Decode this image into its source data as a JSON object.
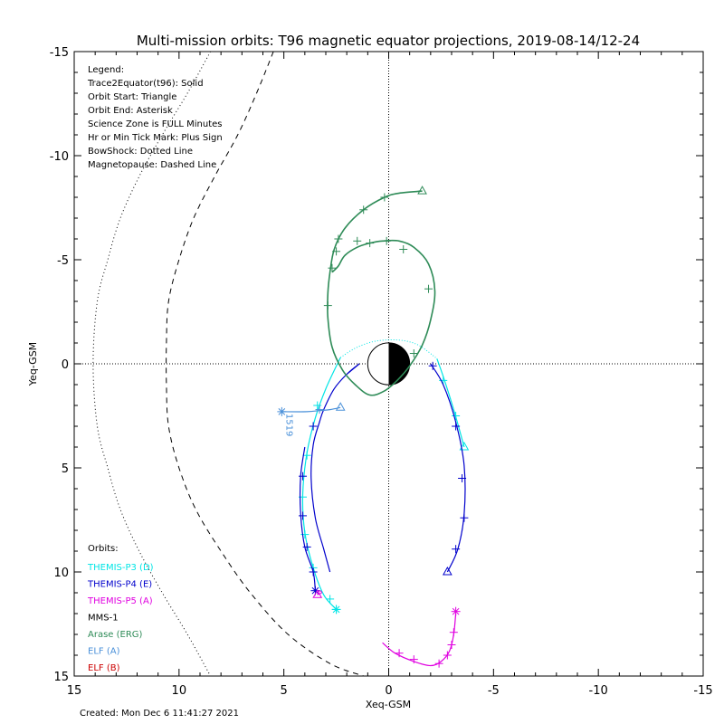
{
  "chart_data": {
    "type": "line",
    "title": "Multi-mission orbits: T96 magnetic equator projections, 2019-08-14/12-24",
    "xlabel": "Xeq-GSM",
    "ylabel": "Yeq-GSM",
    "xlim": [
      15,
      -15
    ],
    "ylim": [
      15,
      -15
    ],
    "xticks": [
      15,
      10,
      5,
      0,
      -5,
      -10,
      -15
    ],
    "yticks": [
      -15,
      -10,
      -5,
      0,
      5,
      10,
      15
    ],
    "xtick_labels": [
      "15",
      "10",
      "5",
      "0",
      "-5",
      "-10",
      "-15"
    ],
    "ytick_labels": [
      "-15",
      "-10",
      "-5",
      "0",
      "5",
      "10",
      "15"
    ],
    "grid": false,
    "zero_lines": "dotted",
    "created": "Created: Mon Dec  6 11:41:27 2021",
    "legend": {
      "placement": "top-left",
      "lines": [
        "Legend:",
        "Trace2Equator(t96): Solid",
        "Orbit Start: Triangle",
        "Orbit End: Asterisk",
        "Science Zone is FULL Minutes",
        "Hr or Min Tick Mark: Plus Sign",
        "BowShock: Dotted Line",
        "Magnetopause: Dashed Line"
      ]
    },
    "orbits_legend": {
      "placement": "bottom-left",
      "heading": "Orbits:",
      "entries": [
        {
          "label": "THEMIS-P3 (D)",
          "color": "#00e5e5"
        },
        {
          "label": "THEMIS-P4 (E)",
          "color": "#0000cc"
        },
        {
          "label": "THEMIS-P5 (A)",
          "color": "#e000e0"
        },
        {
          "label": "MMS-1",
          "color": "#000000"
        },
        {
          "label": "Arase (ERG)",
          "color": "#2e8b57"
        },
        {
          "label": "ELF (A)",
          "color": "#4a90d9"
        },
        {
          "label": "ELF (B)",
          "color": "#cc0000"
        }
      ]
    },
    "annotation": {
      "text": "1519",
      "x": 5.1,
      "y": 2.3,
      "color": "#4a90d9"
    },
    "earth": {
      "radius": 1,
      "night_color": "#000000",
      "day_color": "#ffffff"
    },
    "bow_shock": [
      [
        8.5,
        -15
      ],
      [
        9.6,
        -13
      ],
      [
        10.8,
        -11
      ],
      [
        11.9,
        -9
      ],
      [
        12.8,
        -7
      ],
      [
        13.4,
        -5
      ],
      [
        13.9,
        -3
      ],
      [
        14.1,
        0
      ],
      [
        13.9,
        3
      ],
      [
        13.4,
        5
      ],
      [
        12.8,
        7
      ],
      [
        11.9,
        9
      ],
      [
        10.8,
        11
      ],
      [
        9.6,
        13
      ],
      [
        8.5,
        15
      ]
    ],
    "magnetopause": [
      [
        5.5,
        -15
      ],
      [
        6.3,
        -13
      ],
      [
        7.2,
        -11
      ],
      [
        8.3,
        -9
      ],
      [
        9.3,
        -7
      ],
      [
        10.0,
        -5
      ],
      [
        10.5,
        -3
      ],
      [
        10.6,
        -1
      ],
      [
        10.6,
        1
      ],
      [
        10.5,
        3
      ],
      [
        10.0,
        5
      ],
      [
        9.2,
        7
      ],
      [
        8.0,
        9
      ],
      [
        6.6,
        11
      ],
      [
        4.8,
        13
      ],
      [
        2.8,
        14.4
      ],
      [
        1.2,
        15
      ]
    ],
    "series": [
      {
        "name": "THEMIS-P3 (D)",
        "color": "#00e5e5",
        "dotted_segment": [
          [
            2.3,
            -0.3
          ],
          [
            1.6,
            -0.75
          ],
          [
            0.8,
            -1.05
          ],
          [
            0.0,
            -1.15
          ],
          [
            -0.8,
            -1.1
          ],
          [
            -1.5,
            -0.85
          ],
          [
            -2.3,
            -0.25
          ]
        ],
        "points": [
          [
            -2.3,
            -0.25
          ],
          [
            -2.6,
            0.8
          ],
          [
            -3.2,
            2.3
          ],
          [
            -3.6,
            4.0
          ],
          [
            -3.4,
            4.0
          ],
          [
            -3.6,
            4.0
          ]
        ],
        "solid": [
          [
            -2.3,
            -0.25
          ],
          [
            -2.6,
            0.6
          ],
          [
            -3.1,
            2.2
          ],
          [
            -3.6,
            4.0
          ]
        ],
        "solid2": [
          [
            2.3,
            -0.3
          ],
          [
            3.0,
            1.2
          ],
          [
            3.5,
            2.6
          ],
          [
            3.9,
            4.3
          ],
          [
            4.1,
            6.3
          ],
          [
            4.0,
            8.1
          ],
          [
            3.6,
            9.8
          ],
          [
            3.1,
            11.1
          ],
          [
            2.5,
            11.8
          ]
        ],
        "ticks": [
          [
            -2.6,
            0.8
          ],
          [
            -3.2,
            2.5
          ],
          [
            3.4,
            2.0
          ],
          [
            3.9,
            4.4
          ],
          [
            4.1,
            6.4
          ],
          [
            4.0,
            8.2
          ],
          [
            3.6,
            9.8
          ],
          [
            2.8,
            11.3
          ],
          [
            2.5,
            11.8
          ]
        ],
        "start": [
          -3.6,
          4.0
        ],
        "end": [
          2.5,
          11.8
        ]
      },
      {
        "name": "THEMIS-P4 (E)",
        "color": "#0000cc",
        "solid": [
          [
            2.8,
            10.0
          ],
          [
            3.1,
            8.9
          ],
          [
            3.5,
            7.4
          ],
          [
            3.7,
            5.5
          ],
          [
            3.6,
            3.9
          ],
          [
            3.3,
            2.8
          ],
          [
            3.1,
            2.2
          ],
          [
            2.6,
            1.2
          ],
          [
            2.0,
            0.5
          ],
          [
            1.4,
            0.0
          ],
          [
            2.0,
            0.5
          ]
        ],
        "solid_main": [
          [
            -2.0,
            0.0
          ],
          [
            -2.6,
            1.0
          ],
          [
            -3.2,
            2.8
          ],
          [
            -3.6,
            4.9
          ],
          [
            -3.6,
            7.2
          ],
          [
            -3.3,
            8.9
          ],
          [
            -2.8,
            10.0
          ]
        ],
        "solid_left": [
          [
            4.0,
            4.0
          ],
          [
            4.2,
            5.4
          ],
          [
            4.2,
            7.2
          ],
          [
            4.0,
            8.8
          ],
          [
            3.6,
            10.0
          ],
          [
            3.5,
            10.9
          ]
        ],
        "ticks": [
          [
            -2.1,
            0.1
          ],
          [
            -3.2,
            3.0
          ],
          [
            -3.5,
            5.5
          ],
          [
            -3.6,
            7.4
          ],
          [
            -3.2,
            8.9
          ],
          [
            3.6,
            3.0
          ],
          [
            4.1,
            5.4
          ],
          [
            4.1,
            7.3
          ],
          [
            3.9,
            8.8
          ],
          [
            3.6,
            10.0
          ]
        ],
        "start": [
          -2.8,
          10.0
        ],
        "end": [
          3.5,
          10.9
        ]
      },
      {
        "name": "THEMIS-P5 (A)",
        "color": "#e000e0",
        "solid": [
          [
            0.3,
            13.4
          ],
          [
            -0.3,
            13.9
          ],
          [
            -1.2,
            14.3
          ],
          [
            -2.0,
            14.5
          ],
          [
            -2.5,
            14.3
          ],
          [
            -2.9,
            13.8
          ],
          [
            -3.1,
            13.0
          ],
          [
            -3.2,
            12.0
          ]
        ],
        "small": [
          [
            3.4,
            11.1
          ],
          [
            3.3,
            10.9
          ],
          [
            3.2,
            11.0
          ],
          [
            3.4,
            11.1
          ]
        ],
        "ticks": [
          [
            -0.5,
            13.9
          ],
          [
            -1.2,
            14.2
          ],
          [
            -2.4,
            14.4
          ],
          [
            -2.8,
            14.0
          ],
          [
            -3.0,
            13.5
          ],
          [
            -3.1,
            12.9
          ]
        ],
        "start": [
          3.4,
          11.1
        ],
        "end": [
          -3.2,
          11.9
        ]
      },
      {
        "name": "Arase (ERG)",
        "color": "#2e8b57",
        "solid": [
          [
            -1.6,
            -8.3
          ],
          [
            -0.5,
            -8.2
          ],
          [
            0.2,
            -8.0
          ],
          [
            1.2,
            -7.4
          ],
          [
            2.1,
            -6.5
          ],
          [
            2.6,
            -5.5
          ],
          [
            2.8,
            -4.4
          ],
          [
            2.9,
            -3.4
          ],
          [
            2.9,
            -2.2
          ],
          [
            2.7,
            -0.8
          ],
          [
            2.2,
            0.3
          ],
          [
            1.6,
            1.0
          ],
          [
            0.9,
            1.5
          ],
          [
            0.2,
            1.3
          ],
          [
            -0.4,
            0.8
          ],
          [
            -1.0,
            0.1
          ],
          [
            -1.6,
            -0.9
          ],
          [
            -2.0,
            -2.1
          ],
          [
            -2.2,
            -3.5
          ],
          [
            -1.9,
            -4.8
          ],
          [
            -1.2,
            -5.6
          ],
          [
            -0.5,
            -5.9
          ],
          [
            0.3,
            -5.9
          ],
          [
            0.9,
            -5.8
          ],
          [
            1.5,
            -5.6
          ],
          [
            2.1,
            -5.2
          ],
          [
            2.4,
            -4.7
          ],
          [
            2.7,
            -4.4
          ]
        ],
        "ticks": [
          [
            0.2,
            -8.0
          ],
          [
            1.2,
            -7.4
          ],
          [
            2.4,
            -6.0
          ],
          [
            2.5,
            -5.4
          ],
          [
            2.9,
            -2.8
          ],
          [
            0.9,
            -5.8
          ],
          [
            0.1,
            -5.9
          ],
          [
            -0.7,
            -5.5
          ],
          [
            -1.9,
            -3.6
          ],
          [
            -1.2,
            -0.5
          ],
          [
            2.7,
            -4.6
          ],
          [
            1.5,
            -5.9
          ]
        ],
        "start": [
          -1.6,
          -8.3
        ],
        "end": null
      },
      {
        "name": "ELF (A)",
        "color": "#4a90d9",
        "solid": [
          [
            2.3,
            2.1
          ],
          [
            2.8,
            2.2
          ],
          [
            3.3,
            2.25
          ],
          [
            3.9,
            2.3
          ],
          [
            5.1,
            2.3
          ]
        ],
        "ticks": [
          [
            3.3,
            2.2
          ]
        ],
        "start": [
          2.3,
          2.1
        ],
        "end": [
          5.1,
          2.3
        ]
      }
    ]
  }
}
